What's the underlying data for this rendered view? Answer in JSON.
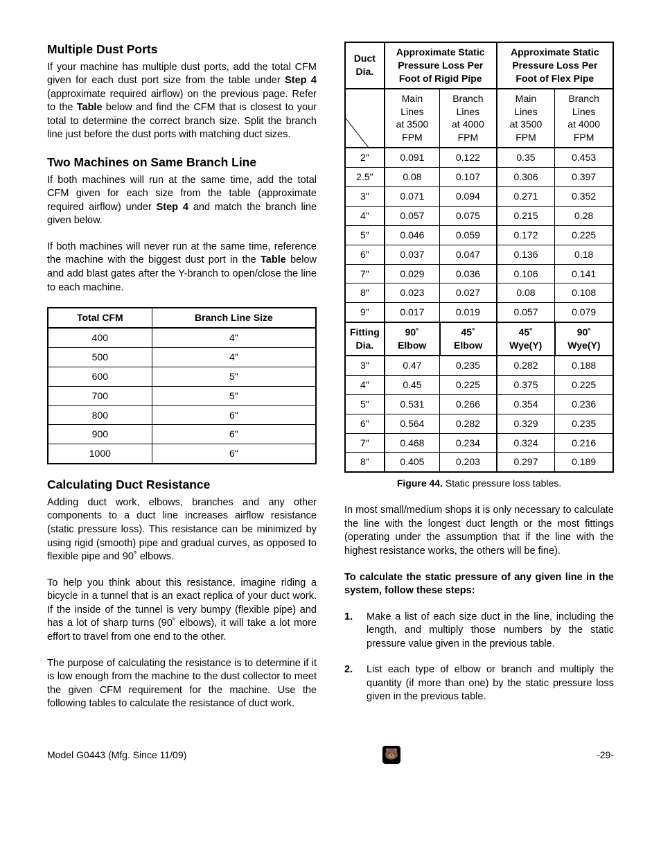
{
  "left": {
    "h1": "Multiple Dust Ports",
    "p1a": "If your machine has multiple dust ports, add the total CFM given for each dust port size from the table under ",
    "p1b": "Step 4",
    "p1c": " (approximate required airflow) on the previous page. Refer to the ",
    "p1d": "Table",
    "p1e": " below and find the CFM that is closest to your total to determine the correct branch size. Split the branch line just before the dust ports with matching duct sizes.",
    "h2": "Two Machines on Same Branch Line",
    "p2a": "If both machines will run at the same time, add the total CFM given for each size from the table (approximate required airflow) under ",
    "p2b": "Step 4",
    "p2c": " and match the branch line given below.",
    "p3a": "If both machines will never run at the same time, reference the machine with the biggest dust port in the ",
    "p3b": "Table",
    "p3c": " below and add blast gates after the Y-branch to open/close the line to each machine.",
    "cfmTable": {
      "headers": [
        "Total CFM",
        "Branch Line Size"
      ],
      "rows": [
        [
          "400",
          "4\""
        ],
        [
          "500",
          "4\""
        ],
        [
          "600",
          "5\""
        ],
        [
          "700",
          "5\""
        ],
        [
          "800",
          "6\""
        ],
        [
          "900",
          "6\""
        ],
        [
          "1000",
          "6\""
        ]
      ]
    },
    "h3": "Calculating Duct Resistance",
    "p4": "Adding duct work, elbows, branches and any other components to a duct line increases airflow resistance (static pressure loss). This resistance can be minimized by using rigid (smooth) pipe and gradual curves, as opposed to flexible pipe and 90˚ elbows.",
    "p5": "To help you think about this resistance, imagine riding a bicycle in a tunnel that is an exact replica of your duct work. If the inside of the tunnel is very bumpy (flexible pipe) and has a lot of sharp turns (90˚ elbows), it will take a lot more effort to travel from one end to the other.",
    "p6": "The purpose of calculating the resistance is to determine if it is low enough from the machine to the dust collector to meet the given CFM requirement for the machine. Use the following tables to calculate the resistance of duct work."
  },
  "right": {
    "ductTable": {
      "h": [
        "Duct Dia.",
        "Approximate Static Pressure Loss Per Foot of Rigid Pipe",
        "Approximate Static Pressure Loss Per Foot of Flex Pipe"
      ],
      "sub": [
        "Main Lines at 3500 FPM",
        "Branch Lines at 4000 FPM",
        "Main Lines at 3500 FPM",
        "Branch Lines at 4000 FPM"
      ],
      "rows": [
        [
          "2\"",
          "0.091",
          "0.122",
          "0.35",
          "0.453"
        ],
        [
          "2.5\"",
          "0.08",
          "0.107",
          "0.306",
          "0.397"
        ],
        [
          "3\"",
          "0.071",
          "0.094",
          "0.271",
          "0.352"
        ],
        [
          "4\"",
          "0.057",
          "0.075",
          "0.215",
          "0.28"
        ],
        [
          "5\"",
          "0.046",
          "0.059",
          "0.172",
          "0.225"
        ],
        [
          "6\"",
          "0.037",
          "0.047",
          "0.136",
          "0.18"
        ],
        [
          "7\"",
          "0.029",
          "0.036",
          "0.106",
          "0.141"
        ],
        [
          "8\"",
          "0.023",
          "0.027",
          "0.08",
          "0.108"
        ],
        [
          "9\"",
          "0.017",
          "0.019",
          "0.057",
          "0.079"
        ]
      ]
    },
    "fitTable": {
      "h": [
        "Fitting Dia.",
        "90˚ Elbow",
        "45˚ Elbow",
        "45˚ Wye(Y)",
        "90˚ Wye(Y)"
      ],
      "rows": [
        [
          "3\"",
          "0.47",
          "0.235",
          "0.282",
          "0.188"
        ],
        [
          "4\"",
          "0.45",
          "0.225",
          "0.375",
          "0.225"
        ],
        [
          "5\"",
          "0.531",
          "0.266",
          "0.354",
          "0.236"
        ],
        [
          "6\"",
          "0.564",
          "0.282",
          "0.329",
          "0.235"
        ],
        [
          "7\"",
          "0.468",
          "0.234",
          "0.324",
          "0.216"
        ],
        [
          "8\"",
          "0.405",
          "0.203",
          "0.297",
          "0.189"
        ]
      ]
    },
    "caption_b": "Figure 44.",
    "caption": " Static pressure loss tables.",
    "p1": "In most small/medium shops it is only necessary to calculate the line with the longest duct length or the most fittings (operating under the assumption that if the line with the highest resistance works, the others will be fine).",
    "p2": "To calculate the static pressure of any given line in the system, follow these steps:",
    "li1": "Make a list of each size duct in the line, including the length, and multiply those numbers by the static pressure value given in the previous table.",
    "li2": "List each type of elbow or branch and multiply the quantity (if more than one) by the static pressure loss given in the previous table."
  },
  "footer": {
    "left": "Model G0443 (Mfg. Since 11/09)",
    "right": "-29-"
  }
}
